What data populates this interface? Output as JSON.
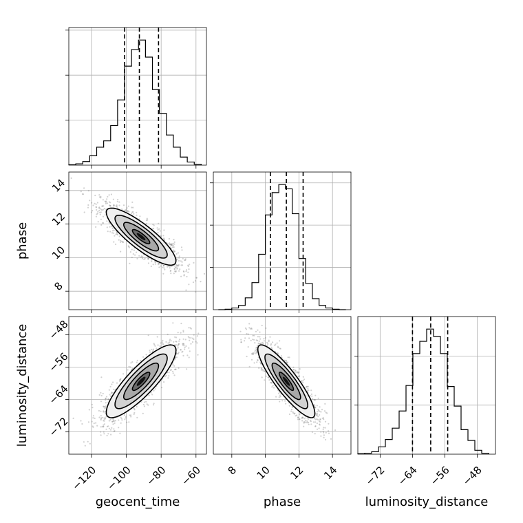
{
  "chart_data": {
    "type": "corner",
    "parameters": [
      "geocent_time",
      "phase",
      "luminosity_distance"
    ],
    "grid": true,
    "ranges": {
      "geocent_time": [
        -133,
        -54
      ],
      "phase": [
        6.9,
        15.1
      ],
      "luminosity_distance": [
        -77.5,
        -43.5
      ]
    },
    "ticks": {
      "geocent_time": [
        -120,
        -100,
        -80,
        -60
      ],
      "phase": [
        8,
        10,
        12,
        14
      ],
      "luminosity_distance": [
        -72,
        -64,
        -56,
        -48
      ]
    },
    "tick_labels": {
      "geocent_time": [
        "−120",
        "−100",
        "−80",
        "−60"
      ],
      "phase": [
        "8",
        "10",
        "12",
        "14"
      ],
      "luminosity_distance": [
        "−72",
        "−64",
        "−56",
        "−48"
      ]
    },
    "histograms": {
      "geocent_time": {
        "bin_edges": [
          -133,
          -129,
          -125,
          -121,
          -117,
          -113,
          -109,
          -105,
          -101,
          -97,
          -93,
          -89,
          -85,
          -81,
          -77,
          -73,
          -69,
          -65,
          -61,
          -57
        ],
        "counts": [
          1,
          3,
          8,
          21,
          40,
          54,
          88,
          145,
          220,
          257,
          278,
          240,
          168,
          115,
          67,
          40,
          18,
          7,
          2
        ],
        "quantiles": [
          -101,
          -92.5,
          -81.5
        ]
      },
      "phase": {
        "bin_edges": [
          7.2,
          7.6,
          8.0,
          8.4,
          8.8,
          9.2,
          9.6,
          10.0,
          10.4,
          10.8,
          11.2,
          11.6,
          12.0,
          12.4,
          12.8,
          13.2,
          13.6,
          14.0,
          14.4,
          14.8
        ],
        "counts": [
          0,
          1,
          4,
          10,
          28,
          64,
          131,
          224,
          277,
          296,
          286,
          227,
          121,
          62,
          26,
          10,
          4,
          1,
          0
        ],
        "quantiles": [
          10.3,
          11.25,
          12.25
        ]
      },
      "luminosity_distance": {
        "bin_edges": [
          -77.5,
          -75.8,
          -74.1,
          -72.4,
          -70.7,
          -69.0,
          -67.3,
          -65.6,
          -63.9,
          -62.2,
          -60.5,
          -58.8,
          -57.1,
          -55.4,
          -53.7,
          -52.0,
          -50.3,
          -48.6,
          -46.9,
          -45.2
        ],
        "counts": [
          1,
          2,
          5,
          15,
          30,
          53,
          88,
          140,
          205,
          230,
          255,
          240,
          205,
          138,
          98,
          50,
          28,
          8,
          2
        ],
        "quantiles": [
          -64,
          -59.5,
          -55.3
        ]
      }
    },
    "joint": {
      "geocent_time__phase": {
        "mean": [
          -91.5,
          11.25
        ],
        "std": [
          10,
          0.85
        ],
        "corr": -0.85
      },
      "geocent_time__luminosity_distance": {
        "mean": [
          -91.5,
          -59.5
        ],
        "std": [
          10,
          4.5
        ],
        "corr": 0.85
      },
      "phase__luminosity_distance": {
        "mean": [
          11.25,
          -59.5
        ],
        "std": [
          0.85,
          4.5
        ],
        "corr": -0.88
      }
    },
    "contour_levels_sigma": [
      0.5,
      1.0,
      1.5,
      2.0
    ]
  }
}
